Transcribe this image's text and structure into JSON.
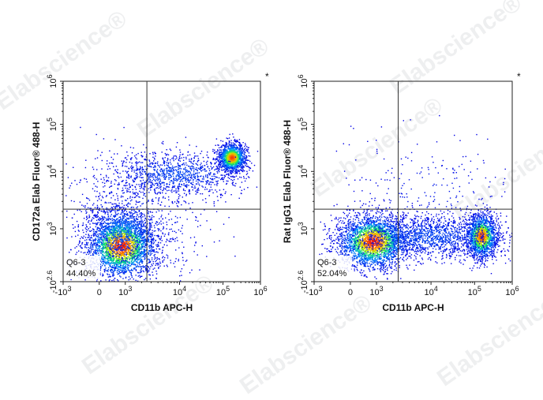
{
  "watermark": "Elabscience®",
  "chart_data": [
    {
      "type": "scatter",
      "subtype": "flow-cytometry-density-dot-plot",
      "xlabel": "CD11b APC-H",
      "ylabel": "CD172a Elab Fluor® 488-H",
      "x_scale": "biexponential",
      "y_scale": "biexponential",
      "xlim": [
        -1000,
        1000000
      ],
      "ylim": [
        -398,
        1000000
      ],
      "x_ticks": [
        {
          "base": "-10",
          "exp": "3"
        },
        {
          "base": "0",
          "exp": ""
        },
        {
          "base": "10",
          "exp": "3"
        },
        {
          "base": "10",
          "exp": "4"
        },
        {
          "base": "10",
          "exp": "5"
        },
        {
          "base": "10",
          "exp": "6"
        }
      ],
      "y_ticks": [
        {
          "base": "-10",
          "exp": "2.6"
        },
        {
          "base": "10",
          "exp": "3"
        },
        {
          "base": "10",
          "exp": "4"
        },
        {
          "base": "10",
          "exp": "5"
        },
        {
          "base": "10",
          "exp": "6"
        }
      ],
      "gate": {
        "x": 2500,
        "y": 2200
      },
      "quadrant_label": "Q6-3",
      "quadrant_percent": "44.40%",
      "marker": "*",
      "populations": [
        {
          "x": 300,
          "y": 60,
          "sx": 0.55,
          "sy": 0.5,
          "n": 2600,
          "heat": 1.0
        },
        {
          "x": 350,
          "y": 800,
          "sx": 0.55,
          "sy": 0.45,
          "n": 700,
          "heat": 0.25
        },
        {
          "x": 170000,
          "y": 20000,
          "sx": 0.22,
          "sy": 0.22,
          "n": 1300,
          "heat": 0.95
        },
        {
          "x": 8000,
          "y": 9000,
          "sx": 1.1,
          "sy": 0.35,
          "n": 1100,
          "heat": 0.15
        },
        {
          "x": 1200,
          "y": 1200,
          "sx": 1.2,
          "sy": 1.1,
          "n": 700,
          "heat": 0.1
        }
      ]
    },
    {
      "type": "scatter",
      "subtype": "flow-cytometry-density-dot-plot",
      "xlabel": "CD11b APC-H",
      "ylabel": "Rat IgG1 Elab Fluor® 488-H",
      "x_scale": "biexponential",
      "y_scale": "biexponential",
      "xlim": [
        -1000,
        1000000
      ],
      "ylim": [
        -398,
        1000000
      ],
      "x_ticks": [
        {
          "base": "-10",
          "exp": "3"
        },
        {
          "base": "0",
          "exp": ""
        },
        {
          "base": "10",
          "exp": "3"
        },
        {
          "base": "10",
          "exp": "4"
        },
        {
          "base": "10",
          "exp": "5"
        },
        {
          "base": "10",
          "exp": "6"
        }
      ],
      "y_ticks": [
        {
          "base": "-10",
          "exp": "2.6"
        },
        {
          "base": "10",
          "exp": "3"
        },
        {
          "base": "10",
          "exp": "4"
        },
        {
          "base": "10",
          "exp": "5"
        },
        {
          "base": "10",
          "exp": "6"
        }
      ],
      "gate": {
        "x": 2500,
        "y": 2200
      },
      "quadrant_label": "Q6-3",
      "quadrant_percent": "52.04%",
      "marker": "*",
      "populations": [
        {
          "x": 350,
          "y": 120,
          "sx": 0.55,
          "sy": 0.42,
          "n": 2500,
          "heat": 1.0
        },
        {
          "x": 150000,
          "y": 300,
          "sx": 0.25,
          "sy": 0.35,
          "n": 1500,
          "heat": 0.95
        },
        {
          "x": 8000,
          "y": 300,
          "sx": 1.3,
          "sy": 0.35,
          "n": 1700,
          "heat": 0.15
        },
        {
          "x": 8000,
          "y": 5000,
          "sx": 1.4,
          "sy": 0.9,
          "n": 220,
          "heat": 0.05
        }
      ]
    }
  ]
}
